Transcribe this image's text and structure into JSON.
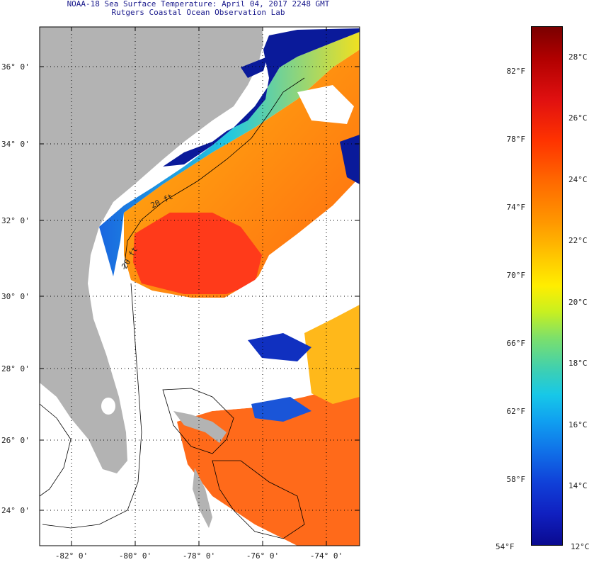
{
  "header": {
    "title": "NOAA-18 Sea Surface Temperature:  April 04, 2017 2248 GMT",
    "subtitle": "Rutgers Coastal Ocean Observation Lab"
  },
  "map": {
    "lat_labels": [
      "36° 0'",
      "34° 0'",
      "32° 0'",
      "30° 0'",
      "28° 0'",
      "26° 0'",
      "24° 0'"
    ],
    "lon_labels": [
      "-82° 0'",
      "-80° 0'",
      "-78° 0'",
      "-76° 0'",
      "-74° 0'"
    ],
    "isobath_labels": [
      "20 ft",
      "20 ft"
    ],
    "colors": {
      "land": "#b3b3b3",
      "cloud": "#ffffff",
      "warm": "#ff5a1a",
      "cool": "#1f7ae8",
      "cold": "#0a1a9a"
    }
  },
  "colorbar": {
    "fahrenheit_labels": [
      "82°F",
      "78°F",
      "74°F",
      "70°F",
      "66°F",
      "62°F",
      "58°F",
      "54°F"
    ],
    "celsius_labels": [
      "28°C",
      "26°C",
      "24°C",
      "22°C",
      "20°C",
      "18°C",
      "16°C",
      "14°C",
      "12°C"
    ]
  }
}
